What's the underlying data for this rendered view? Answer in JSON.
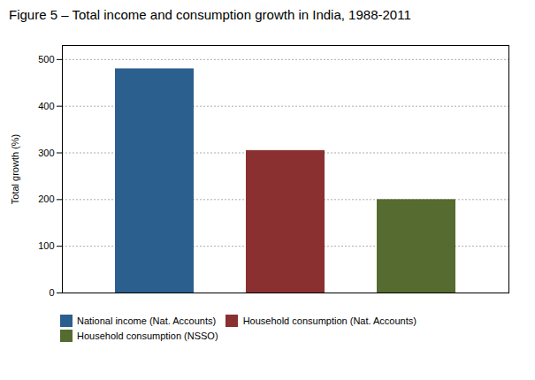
{
  "chart_data": {
    "type": "bar",
    "title": "Figure 5 – Total income and consumption growth in India, 1988-2011",
    "ylabel": "Total growth (%)",
    "categories": [
      "National income (Nat. Accounts)",
      "Household consumption (Nat. Accounts)",
      "Household consumption (NSSO)"
    ],
    "values": [
      480,
      305,
      200
    ],
    "colors": [
      "#2b5f8e",
      "#8b3030",
      "#556b2f"
    ],
    "ylim": [
      0,
      530
    ],
    "yticks": [
      0,
      100,
      200,
      300,
      400,
      500
    ],
    "grid": true,
    "legend": "bottom",
    "tick_labels": "y"
  }
}
